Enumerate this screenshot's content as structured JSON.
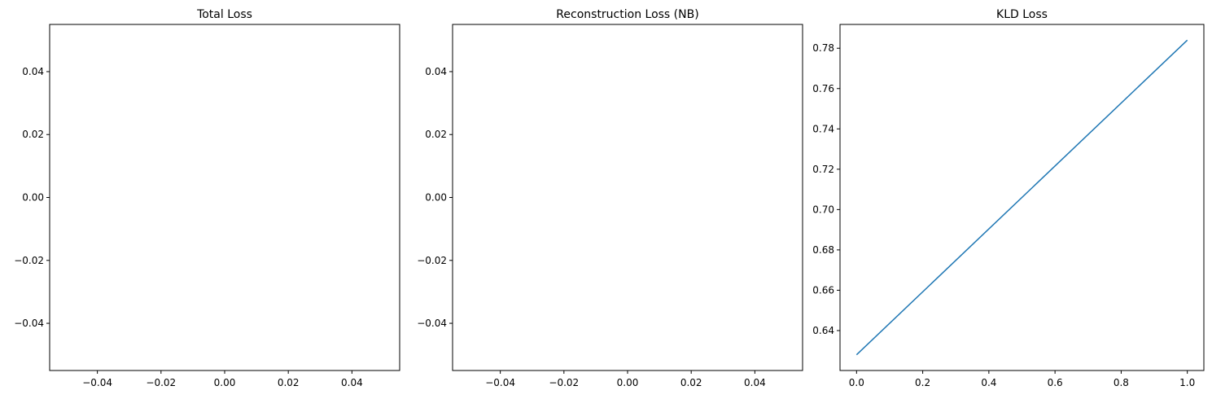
{
  "chart_data": [
    {
      "type": "line",
      "title": "Total Loss",
      "xlabel": "",
      "ylabel": "",
      "series": [],
      "xlim": [
        -0.055,
        0.055
      ],
      "ylim": [
        -0.055,
        0.055
      ],
      "xticks": [
        -0.04,
        -0.02,
        0.0,
        0.02,
        0.04
      ],
      "yticks": [
        -0.04,
        -0.02,
        0.0,
        0.02,
        0.04
      ],
      "xtick_labels": [
        "−0.04",
        "−0.02",
        "0.00",
        "0.02",
        "0.04"
      ],
      "ytick_labels": [
        "−0.04",
        "−0.02",
        "0.00",
        "0.02",
        "0.04"
      ],
      "grid": false
    },
    {
      "type": "line",
      "title": "Reconstruction Loss (NB)",
      "xlabel": "",
      "ylabel": "",
      "series": [],
      "xlim": [
        -0.055,
        0.055
      ],
      "ylim": [
        -0.055,
        0.055
      ],
      "xticks": [
        -0.04,
        -0.02,
        0.0,
        0.02,
        0.04
      ],
      "yticks": [
        -0.04,
        -0.02,
        0.0,
        0.02,
        0.04
      ],
      "xtick_labels": [
        "−0.04",
        "−0.02",
        "0.00",
        "0.02",
        "0.04"
      ],
      "ytick_labels": [
        "−0.04",
        "−0.02",
        "0.00",
        "0.02",
        "0.04"
      ],
      "grid": false
    },
    {
      "type": "line",
      "title": "KLD Loss",
      "xlabel": "",
      "ylabel": "",
      "series": [
        {
          "x": [
            0,
            1
          ],
          "y": [
            0.628,
            0.784
          ],
          "color": "#1f77b4"
        }
      ],
      "xlim": [
        -0.05,
        1.05
      ],
      "ylim": [
        0.6202,
        0.7918
      ],
      "xticks": [
        0.0,
        0.2,
        0.4,
        0.6,
        0.8,
        1.0
      ],
      "yticks": [
        0.64,
        0.66,
        0.68,
        0.7,
        0.72,
        0.74,
        0.76,
        0.78
      ],
      "xtick_labels": [
        "0.0",
        "0.2",
        "0.4",
        "0.6",
        "0.8",
        "1.0"
      ],
      "ytick_labels": [
        "0.64",
        "0.66",
        "0.68",
        "0.70",
        "0.72",
        "0.74",
        "0.76",
        "0.78"
      ],
      "grid": false
    }
  ]
}
